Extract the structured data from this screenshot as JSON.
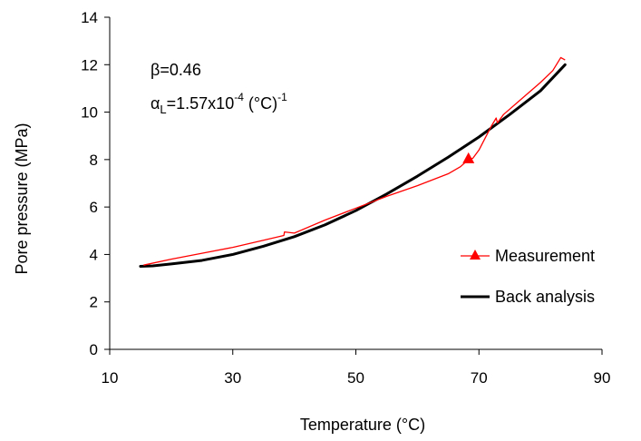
{
  "chart_data": {
    "type": "line",
    "xlabel": "Temperature (°C)",
    "ylabel": "Pore pressure (MPa)",
    "xlim": [
      10,
      90
    ],
    "ylim": [
      0,
      14
    ],
    "xticks": [
      "10",
      "30",
      "50",
      "70",
      "90"
    ],
    "yticks": [
      "0",
      "2",
      "4",
      "6",
      "8",
      "10",
      "12",
      "14"
    ],
    "grid": false,
    "legend_position": "bottom-right",
    "annotations": {
      "beta_symbol": "β",
      "beta_rest": "=0.46",
      "alpha_symbol": "α",
      "alpha_sub": "L",
      "alpha_main": "=1.57x10",
      "alpha_exp": "-4",
      "alpha_unit": " (°C)",
      "alpha_unit_exp": "-1"
    },
    "series": [
      {
        "name": "Measurement",
        "color": "#ff0000",
        "marker": "triangle",
        "marker_point": [
          68.3,
          8.0
        ],
        "x": [
          15.5,
          20,
          25,
          30,
          35,
          38.3,
          38.4,
          40,
          45,
          50,
          55,
          60,
          65,
          67,
          68.3,
          69,
          70,
          71,
          72,
          72.8,
          73.0,
          74,
          76,
          78,
          80,
          82,
          83.3,
          84
        ],
        "y": [
          3.55,
          3.8,
          4.05,
          4.3,
          4.6,
          4.8,
          4.95,
          4.9,
          5.45,
          5.95,
          6.45,
          6.9,
          7.4,
          7.7,
          8.0,
          8.05,
          8.4,
          8.9,
          9.4,
          9.75,
          9.55,
          9.9,
          10.35,
          10.8,
          11.25,
          11.75,
          12.3,
          12.2
        ]
      },
      {
        "name": "Back analysis",
        "color": "#000000",
        "marker": "none",
        "x": [
          15,
          17,
          20,
          25,
          30,
          35,
          40,
          45,
          50,
          55,
          60,
          65,
          70,
          75,
          80,
          84
        ],
        "y": [
          3.5,
          3.52,
          3.6,
          3.75,
          4.0,
          4.35,
          4.75,
          5.25,
          5.85,
          6.55,
          7.3,
          8.1,
          8.95,
          9.9,
          10.9,
          12.0
        ]
      }
    ]
  }
}
